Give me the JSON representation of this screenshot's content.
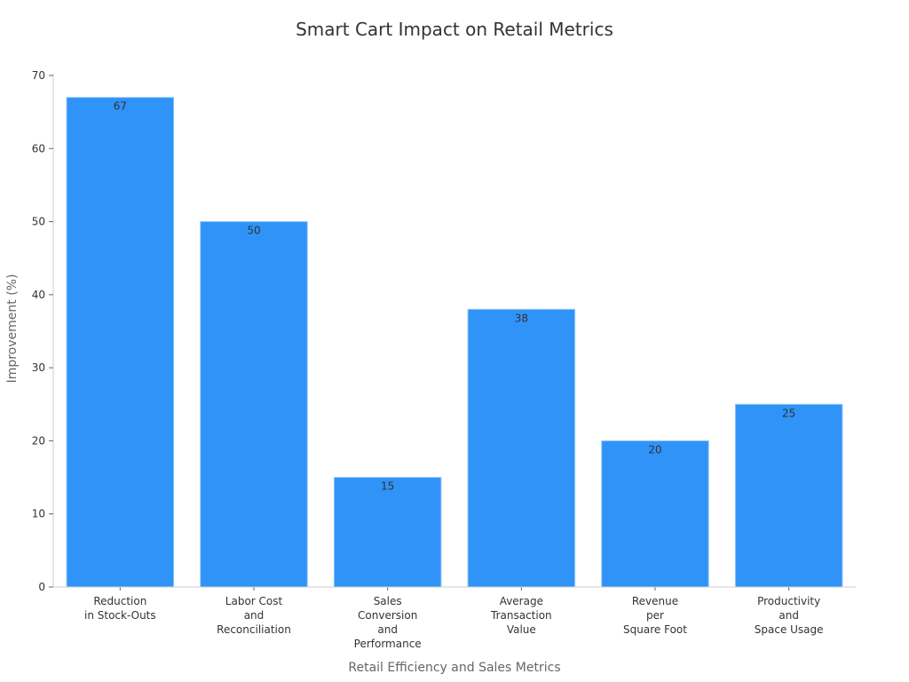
{
  "chart_data": {
    "type": "bar",
    "title": "Smart Cart Impact on Retail Metrics",
    "xlabel": "Retail Efficiency and Sales Metrics",
    "ylabel": "Improvement (%)",
    "ylim": [
      0,
      70
    ],
    "yticks": [
      0,
      10,
      20,
      30,
      40,
      50,
      60,
      70
    ],
    "categories": [
      [
        "Reduction",
        "in Stock-Outs"
      ],
      [
        "Labor Cost",
        "and",
        "Reconciliation"
      ],
      [
        "Sales",
        "Conversion",
        "and",
        "Performance"
      ],
      [
        "Average",
        "Transaction",
        "Value"
      ],
      [
        "Revenue",
        "per",
        "Square Foot"
      ],
      [
        "Productivity",
        "and",
        "Space Usage"
      ]
    ],
    "values": [
      67,
      50,
      15,
      38,
      20,
      25
    ],
    "bar_color": "#2f93f8",
    "bar_edge_color": "#90c8f8",
    "grid": false,
    "legend": "none",
    "data_labels": true
  }
}
